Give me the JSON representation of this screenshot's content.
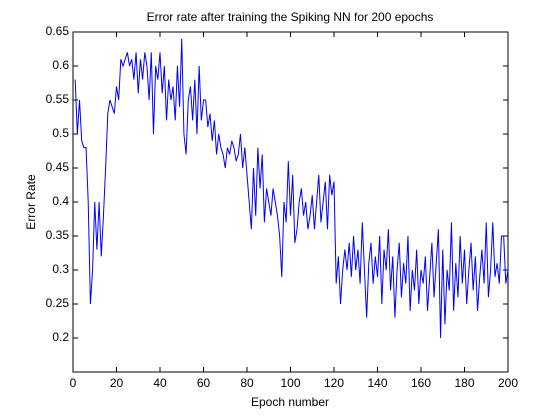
{
  "chart_data": {
    "type": "line",
    "title": "Error rate after training the Spiking NN for 200 epochs",
    "xlabel": "Epoch number",
    "ylabel": "Error Rate",
    "xlim": [
      0,
      200
    ],
    "xticks": [
      0,
      20,
      40,
      60,
      80,
      100,
      120,
      140,
      160,
      180,
      200
    ],
    "ylim": [
      0.15,
      0.65
    ],
    "yticks": [
      0.2,
      0.25,
      0.3,
      0.35,
      0.4,
      0.45,
      0.5,
      0.55,
      0.6,
      0.65
    ],
    "x": [
      1,
      2,
      3,
      4,
      5,
      6,
      7,
      8,
      9,
      10,
      11,
      12,
      13,
      14,
      15,
      16,
      17,
      18,
      19,
      20,
      21,
      22,
      23,
      24,
      25,
      26,
      27,
      28,
      29,
      30,
      31,
      32,
      33,
      34,
      35,
      36,
      37,
      38,
      39,
      40,
      41,
      42,
      43,
      44,
      45,
      46,
      47,
      48,
      49,
      50,
      51,
      52,
      53,
      54,
      55,
      56,
      57,
      58,
      59,
      60,
      61,
      62,
      63,
      64,
      65,
      66,
      67,
      68,
      69,
      70,
      71,
      72,
      73,
      74,
      75,
      76,
      77,
      78,
      79,
      80,
      81,
      82,
      83,
      84,
      85,
      86,
      87,
      88,
      89,
      90,
      91,
      92,
      93,
      94,
      95,
      96,
      97,
      98,
      99,
      100,
      101,
      102,
      103,
      104,
      105,
      106,
      107,
      108,
      109,
      110,
      111,
      112,
      113,
      114,
      115,
      116,
      117,
      118,
      119,
      120,
      121,
      122,
      123,
      124,
      125,
      126,
      127,
      128,
      129,
      130,
      131,
      132,
      133,
      134,
      135,
      136,
      137,
      138,
      139,
      140,
      141,
      142,
      143,
      144,
      145,
      146,
      147,
      148,
      149,
      150,
      151,
      152,
      153,
      154,
      155,
      156,
      157,
      158,
      159,
      160,
      161,
      162,
      163,
      164,
      165,
      166,
      167,
      168,
      169,
      170,
      171,
      172,
      173,
      174,
      175,
      176,
      177,
      178,
      179,
      180,
      181,
      182,
      183,
      184,
      185,
      186,
      187,
      188,
      189,
      190,
      191,
      192,
      193,
      194,
      195,
      196,
      197,
      198,
      199,
      200
    ],
    "series": [
      {
        "color": "#0000ff",
        "values": [
          0.58,
          0.5,
          0.55,
          0.49,
          0.48,
          0.48,
          0.4,
          0.25,
          0.3,
          0.4,
          0.33,
          0.4,
          0.32,
          0.38,
          0.45,
          0.53,
          0.55,
          0.54,
          0.53,
          0.57,
          0.55,
          0.61,
          0.6,
          0.61,
          0.62,
          0.6,
          0.61,
          0.58,
          0.62,
          0.56,
          0.61,
          0.58,
          0.62,
          0.6,
          0.55,
          0.62,
          0.5,
          0.6,
          0.58,
          0.62,
          0.56,
          0.6,
          0.52,
          0.58,
          0.55,
          0.57,
          0.52,
          0.6,
          0.54,
          0.64,
          0.5,
          0.47,
          0.55,
          0.57,
          0.52,
          0.58,
          0.5,
          0.6,
          0.52,
          0.55,
          0.55,
          0.51,
          0.53,
          0.49,
          0.52,
          0.47,
          0.5,
          0.48,
          0.47,
          0.45,
          0.48,
          0.47,
          0.49,
          0.48,
          0.46,
          0.47,
          0.5,
          0.45,
          0.48,
          0.44,
          0.4,
          0.36,
          0.45,
          0.38,
          0.48,
          0.42,
          0.47,
          0.37,
          0.42,
          0.4,
          0.38,
          0.42,
          0.4,
          0.38,
          0.35,
          0.29,
          0.4,
          0.37,
          0.46,
          0.38,
          0.44,
          0.34,
          0.36,
          0.4,
          0.42,
          0.38,
          0.4,
          0.36,
          0.38,
          0.41,
          0.36,
          0.4,
          0.44,
          0.37,
          0.4,
          0.43,
          0.36,
          0.44,
          0.41,
          0.43,
          0.28,
          0.32,
          0.25,
          0.3,
          0.33,
          0.3,
          0.34,
          0.29,
          0.35,
          0.3,
          0.33,
          0.28,
          0.37,
          0.3,
          0.23,
          0.31,
          0.34,
          0.28,
          0.32,
          0.29,
          0.35,
          0.25,
          0.33,
          0.3,
          0.36,
          0.27,
          0.32,
          0.23,
          0.3,
          0.34,
          0.26,
          0.31,
          0.28,
          0.35,
          0.24,
          0.3,
          0.27,
          0.33,
          0.25,
          0.3,
          0.28,
          0.32,
          0.24,
          0.29,
          0.34,
          0.26,
          0.31,
          0.36,
          0.2,
          0.33,
          0.22,
          0.3,
          0.27,
          0.37,
          0.24,
          0.31,
          0.26,
          0.35,
          0.28,
          0.33,
          0.25,
          0.3,
          0.34,
          0.27,
          0.32,
          0.24,
          0.29,
          0.33,
          0.28,
          0.37,
          0.26,
          0.3,
          0.37,
          0.29,
          0.31,
          0.28,
          0.35,
          0.35,
          0.28,
          0.3
        ]
      }
    ]
  }
}
